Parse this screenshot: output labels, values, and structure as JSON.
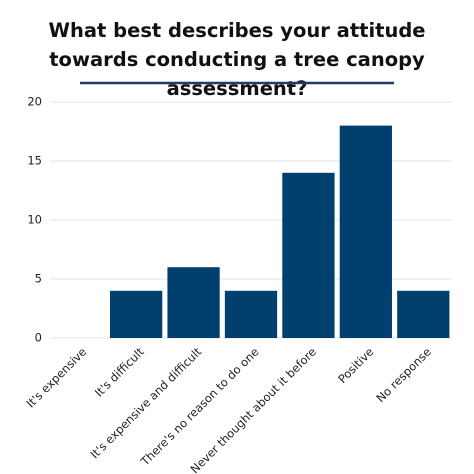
{
  "chart_data": {
    "type": "bar",
    "title": "What best describes your attitude towards conducting a tree canopy assessment?",
    "categories": [
      "It's expensive",
      "It's difficult",
      "It's expensive and difficult",
      "There's no reason to do one",
      "Never thought about it before",
      "Positive",
      "No response"
    ],
    "values": [
      0,
      4,
      6,
      4,
      14,
      18,
      4
    ],
    "color": "#003f6e",
    "ylim": [
      0,
      20
    ],
    "yticks": [
      0,
      5,
      10,
      15,
      20
    ],
    "grid": true
  }
}
